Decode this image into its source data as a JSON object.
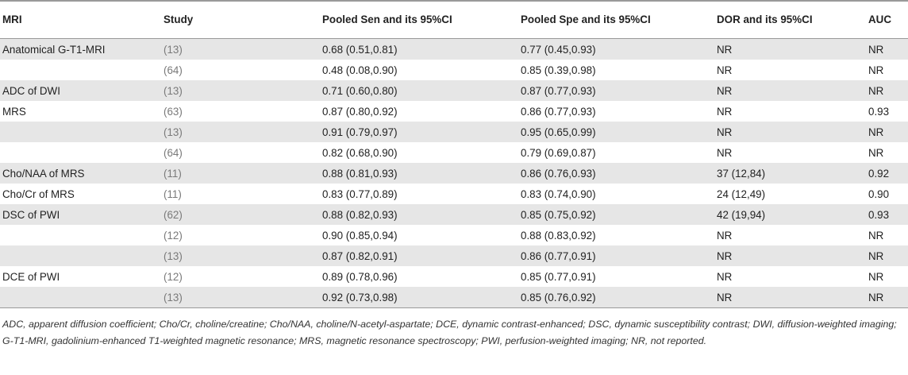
{
  "headers": {
    "mri": "MRI",
    "study": "Study",
    "sen": "Pooled Sen and its 95%CI",
    "spe": "Pooled Spe and its 95%CI",
    "dor": "DOR and its 95%CI",
    "auc": "AUC"
  },
  "rows": [
    {
      "mri": "Anatomical G-T1-MRI",
      "study": "13",
      "sen": "0.68 (0.51,0.81)",
      "spe": "0.77 (0.45,0.93)",
      "dor": "NR",
      "auc": "NR"
    },
    {
      "mri": "",
      "study": "64",
      "sen": "0.48 (0.08,0.90)",
      "spe": "0.85 (0.39,0.98)",
      "dor": "NR",
      "auc": "NR"
    },
    {
      "mri": "ADC of DWI",
      "study": "13",
      "sen": "0.71 (0.60,0.80)",
      "spe": "0.87 (0.77,0.93)",
      "dor": "NR",
      "auc": "NR"
    },
    {
      "mri": "MRS",
      "study": "63",
      "sen": "0.87 (0.80,0.92)",
      "spe": "0.86 (0.77,0.93)",
      "dor": "NR",
      "auc": "0.93"
    },
    {
      "mri": "",
      "study": "13",
      "sen": "0.91 (0.79,0.97)",
      "spe": "0.95 (0.65,0.99)",
      "dor": "NR",
      "auc": "NR"
    },
    {
      "mri": "",
      "study": "64",
      "sen": "0.82 (0.68,0.90)",
      "spe": "0.79 (0.69,0.87)",
      "dor": "NR",
      "auc": "NR"
    },
    {
      "mri": "Cho/NAA of MRS",
      "study": "11",
      "sen": "0.88 (0.81,0.93)",
      "spe": "0.86 (0.76,0.93)",
      "dor": "37 (12,84)",
      "auc": "0.92"
    },
    {
      "mri": "Cho/Cr of MRS",
      "study": "11",
      "sen": "0.83 (0.77,0.89)",
      "spe": "0.83 (0.74,0.90)",
      "dor": "24 (12,49)",
      "auc": "0.90"
    },
    {
      "mri": "DSC of PWI",
      "study": "62",
      "sen": "0.88 (0.82,0.93)",
      "spe": "0.85 (0.75,0.92)",
      "dor": "42 (19,94)",
      "auc": "0.93"
    },
    {
      "mri": "",
      "study": "12",
      "sen": "0.90 (0.85,0.94)",
      "spe": "0.88 (0.83,0.92)",
      "dor": "NR",
      "auc": "NR"
    },
    {
      "mri": "",
      "study": "13",
      "sen": "0.87 (0.82,0.91)",
      "spe": "0.86 (0.77,0.91)",
      "dor": "NR",
      "auc": "NR"
    },
    {
      "mri": "DCE of PWI",
      "study": "12",
      "sen": "0.89 (0.78,0.96)",
      "spe": "0.85 (0.77,0.91)",
      "dor": "NR",
      "auc": "NR"
    },
    {
      "mri": "",
      "study": "13",
      "sen": "0.92 (0.73,0.98)",
      "spe": "0.85 (0.76,0.92)",
      "dor": "NR",
      "auc": "NR"
    }
  ],
  "footnote": "ADC, apparent diffusion coefficient; Cho/Cr, choline/creatine; Cho/NAA, choline/N-acetyl-aspartate; DCE, dynamic contrast-enhanced; DSC, dynamic susceptibility contrast; DWI, diffusion-weighted imaging; G-T1-MRI, gadolinium-enhanced T1-weighted magnetic resonance; MRS, magnetic resonance spectroscopy; PWI, perfusion-weighted imaging; NR, not reported."
}
